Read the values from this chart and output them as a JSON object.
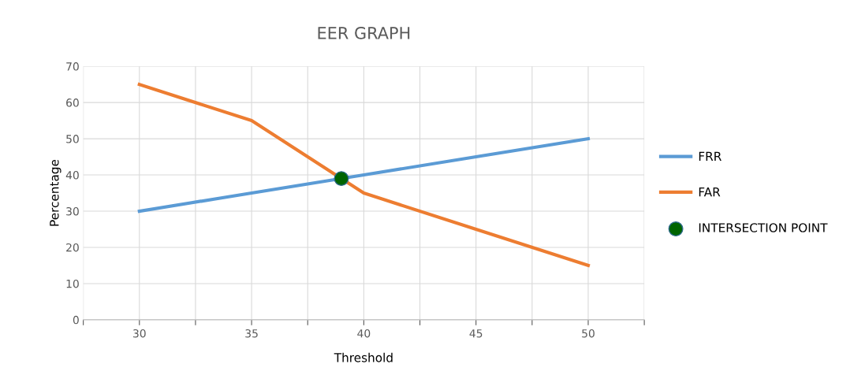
{
  "chart_data": {
    "type": "line",
    "title": "EER GRAPH",
    "xlabel": "Threshold",
    "ylabel": "Percentage",
    "x": [
      30,
      35,
      40,
      45,
      50
    ],
    "series": [
      {
        "name": "FRR",
        "color": "#5b9bd5",
        "values": [
          30,
          35,
          40,
          45,
          50
        ]
      },
      {
        "name": "FAR",
        "color": "#ed7d31",
        "values": [
          65,
          55,
          35,
          25,
          15
        ]
      },
      {
        "name": "INTERSECTION POINT",
        "type": "scatter",
        "color": "#006400",
        "x": [
          39
        ],
        "values": [
          39
        ],
        "marker": "circle"
      }
    ],
    "xlim": [
      27.5,
      52.5
    ],
    "xticks": [
      {
        "value": 27.5,
        "label": null
      },
      30,
      {
        "value": 32.5,
        "label": null
      },
      35,
      {
        "value": 37.5,
        "label": null
      },
      40,
      {
        "value": 42.5,
        "label": null
      },
      45,
      {
        "value": 47.5,
        "label": null
      },
      50,
      {
        "value": 52.5,
        "label": null
      }
    ],
    "ylim": [
      0,
      70
    ],
    "yticks": [
      0,
      10,
      20,
      30,
      40,
      50,
      60,
      70
    ],
    "grid": true,
    "legend": "right"
  }
}
